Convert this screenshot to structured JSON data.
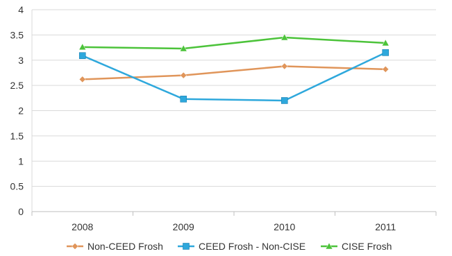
{
  "chart_data": {
    "type": "line",
    "categories": [
      "2008",
      "2009",
      "2010",
      "2011"
    ],
    "ylim": [
      0,
      4
    ],
    "yticks": [
      "0",
      "0.5",
      "1",
      "1.5",
      "2",
      "2.5",
      "3",
      "3.5",
      "4"
    ],
    "ytick_values": [
      0,
      0.5,
      1,
      1.5,
      2,
      2.5,
      3,
      3.5,
      4
    ],
    "grid": "horizontal",
    "legend": "bottom",
    "series": [
      {
        "name": "Non-CEED Frosh",
        "values": [
          2.62,
          2.7,
          2.88,
          2.82
        ],
        "color": "#E0955A",
        "marker": "diamond"
      },
      {
        "name": "CEED Frosh - Non-CISE",
        "values": [
          3.09,
          2.23,
          2.2,
          3.15
        ],
        "color": "#2EA8DC",
        "marker": "square"
      },
      {
        "name": "CISE Frosh",
        "values": [
          3.26,
          3.23,
          3.45,
          3.34
        ],
        "color": "#4CC33A",
        "marker": "triangle"
      }
    ]
  }
}
